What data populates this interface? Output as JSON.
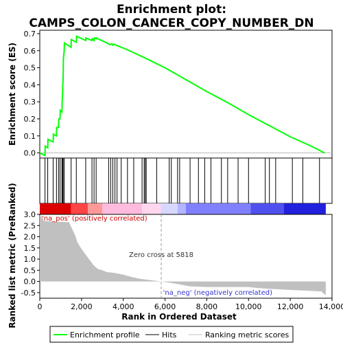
{
  "chart_data": {
    "type": "line",
    "title_line1": "Enrichment plot:",
    "title_line2": "CAMPS_COLON_CANCER_COPY_NUMBER_DN",
    "es_panel": {
      "ylabel": "Enrichment score (ES)",
      "ylim": [
        -0.03,
        0.72
      ],
      "yticks": [
        "0.0",
        "0.1",
        "0.2",
        "0.3",
        "0.4",
        "0.5",
        "0.6",
        "0.7"
      ],
      "ytick_values": [
        0.0,
        0.1,
        0.2,
        0.3,
        0.4,
        0.5,
        0.6,
        0.7
      ],
      "line_color": "#00ff00",
      "x": [
        0,
        250,
        260,
        380,
        390,
        640,
        650,
        800,
        810,
        900,
        910,
        970,
        980,
        1060,
        1070,
        1090,
        1100,
        1120,
        1130,
        1170,
        1180,
        1500,
        1510,
        1750,
        1760,
        2200,
        2210,
        2500,
        2510,
        2600,
        2610,
        2700,
        2710,
        3300,
        3350,
        3450,
        3500,
        3550,
        3600,
        3700,
        4200,
        5000,
        6000,
        7000,
        8000,
        9000,
        10000,
        11000,
        12000,
        13000,
        13650
      ],
      "y": [
        0.0,
        -0.015,
        0.04,
        0.03,
        0.08,
        0.065,
        0.11,
        0.1,
        0.15,
        0.15,
        0.2,
        0.2,
        0.25,
        0.24,
        0.3,
        0.35,
        0.39,
        0.45,
        0.55,
        0.6,
        0.645,
        0.62,
        0.665,
        0.65,
        0.685,
        0.66,
        0.675,
        0.66,
        0.67,
        0.66,
        0.675,
        0.67,
        0.675,
        0.64,
        0.635,
        0.64,
        0.632,
        0.638,
        0.635,
        0.63,
        0.605,
        0.56,
        0.5,
        0.43,
        0.36,
        0.295,
        0.225,
        0.16,
        0.095,
        0.04,
        0.0
      ]
    },
    "hits": [
      250,
      380,
      640,
      800,
      900,
      970,
      1060,
      1090,
      1120,
      1170,
      1500,
      1750,
      2200,
      2500,
      2600,
      2700,
      3300,
      3400,
      3500,
      3600,
      3700,
      3900,
      4200,
      4500,
      4900,
      5000,
      5050,
      5100,
      5600,
      6200,
      6300,
      6600,
      6700,
      7200,
      7600,
      7900,
      8200,
      8700,
      9000,
      9500,
      10000,
      10800,
      11000,
      11300,
      12100,
      12600,
      13400
    ],
    "color_bar": {
      "segments": [
        {
          "start": 0,
          "end": 1500,
          "color": "#dd0000"
        },
        {
          "start": 1500,
          "end": 2300,
          "color": "#ff4444"
        },
        {
          "start": 2300,
          "end": 3000,
          "color": "#ff9999"
        },
        {
          "start": 3000,
          "end": 4900,
          "color": "#ffbbdd"
        },
        {
          "start": 4900,
          "end": 5800,
          "color": "#ffd6ee"
        },
        {
          "start": 5800,
          "end": 6600,
          "color": "#d8d8ff"
        },
        {
          "start": 6600,
          "end": 7000,
          "color": "#b4b4ff"
        },
        {
          "start": 7000,
          "end": 10100,
          "color": "#8080ff"
        },
        {
          "start": 10100,
          "end": 11700,
          "color": "#5050ee"
        },
        {
          "start": 11700,
          "end": 13700,
          "color": "#2020dd"
        }
      ]
    },
    "metric_panel": {
      "ylabel": "Ranked list metric (PreRanked)",
      "ylim": [
        -0.75,
        3.0
      ],
      "yticks": [
        "3.0",
        "2.5",
        "2.0",
        "1.5",
        "1.0",
        "0.5",
        "0.0",
        "-0.5"
      ],
      "ytick_values": [
        3.0,
        2.5,
        2.0,
        1.5,
        1.0,
        0.5,
        0.0,
        -0.5
      ],
      "fill_color": "#c0c0c0",
      "x": [
        0,
        100,
        200,
        1400,
        1500,
        1600,
        1700,
        1800,
        2000,
        2200,
        2400,
        2600,
        2800,
        3000,
        3200,
        3600,
        4000,
        4400,
        4800,
        5400,
        5818,
        6200,
        6800,
        7200,
        8000,
        9000,
        10000,
        10500,
        11000,
        12000,
        13000,
        13500,
        13600,
        13700
      ],
      "y": [
        2.95,
        2.9,
        2.7,
        2.65,
        2.45,
        2.25,
        2.05,
        1.75,
        1.45,
        1.2,
        0.95,
        0.7,
        0.55,
        0.5,
        0.42,
        0.38,
        0.3,
        0.2,
        0.12,
        0.05,
        0.0,
        -0.05,
        -0.15,
        -0.22,
        -0.25,
        -0.25,
        -0.25,
        -0.3,
        -0.33,
        -0.38,
        -0.42,
        -0.45,
        -0.55,
        -0.6
      ],
      "label_pos": "'na_pos' (positively correlated)",
      "label_neg": "'na_neg' (negatively correlated)",
      "zero_cross_text": "Zero cross at 5818",
      "zero_cross_x": 5818
    },
    "x_axis": {
      "xlabel": "Rank in Ordered Dataset",
      "xlim": [
        0,
        14000
      ],
      "xticks": [
        "0",
        "2,000",
        "4,000",
        "6,000",
        "8,000",
        "10,000",
        "12,000",
        "14,000"
      ],
      "xtick_values": [
        0,
        2000,
        4000,
        6000,
        8000,
        10000,
        12000,
        14000
      ]
    },
    "legend": {
      "placement": "bottom",
      "items": [
        {
          "label": "Enrichment profile",
          "color": "#00ff00"
        },
        {
          "label": "Hits",
          "color": "#000000"
        },
        {
          "label": "Ranking metric scores",
          "color": "#c0c0c0"
        }
      ]
    }
  }
}
